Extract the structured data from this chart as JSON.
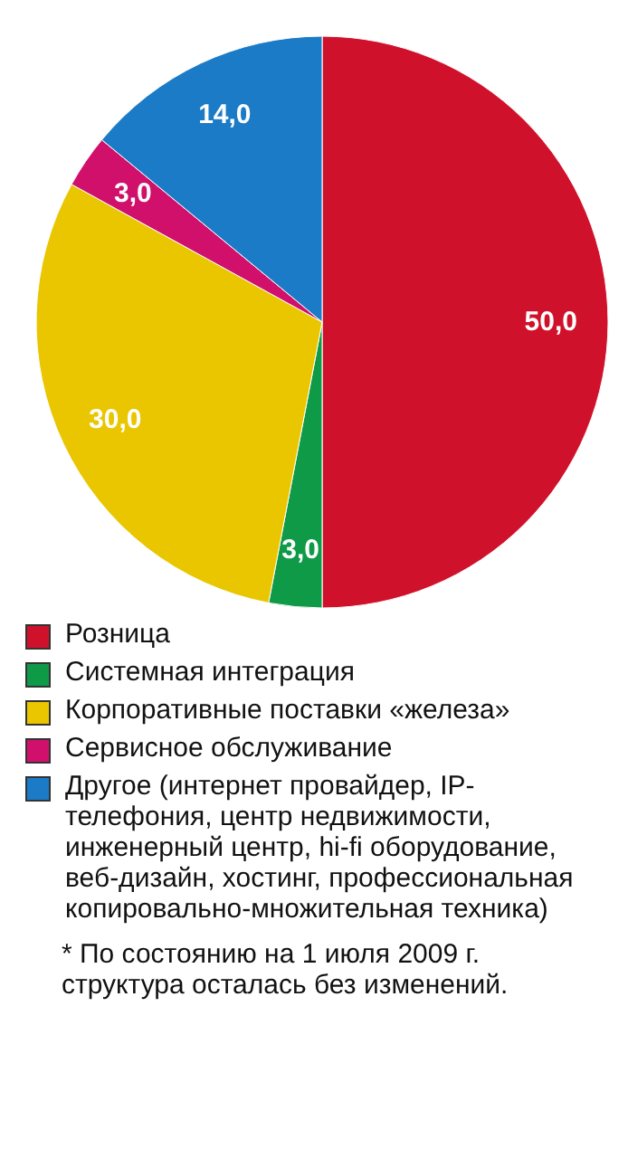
{
  "chart_data": {
    "type": "pie",
    "categories": [
      "Розница",
      "Системная интеграция",
      "Корпоративные поставки «железа»",
      "Сервисное обслуживание",
      "Другое (интернет провайдер, IP-телефония, центр недвижимости, инженерный центр, hi-fi оборудование, веб-дизайн, хостинг, профессиональная копировально-множительная техника)"
    ],
    "values": [
      50,
      3,
      30,
      3,
      14
    ],
    "colors": [
      "#d0112b",
      "#0f9a48",
      "#e9c600",
      "#d0106b",
      "#1b7bc6"
    ],
    "value_labels": [
      "50,0",
      "3,0",
      "30,0",
      "3,0",
      "14,0"
    ],
    "legend": "bottom",
    "annotations": [
      "* По состоянию на 1 июля 2009 г. структура осталась без изменений."
    ]
  }
}
